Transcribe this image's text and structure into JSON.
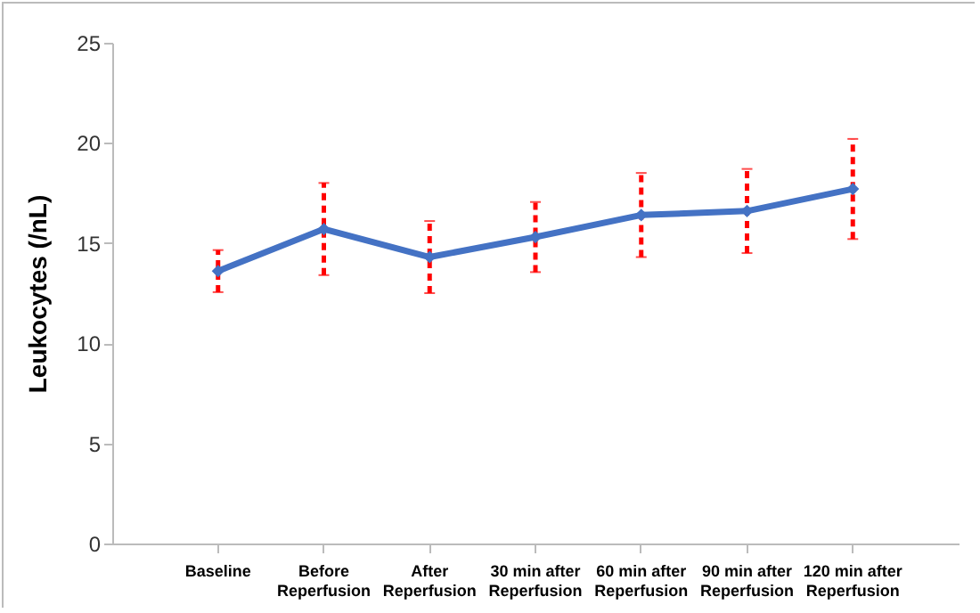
{
  "chart_data": {
    "type": "line",
    "ylabel": "Leukocytes (/nL)",
    "categories": [
      "Baseline",
      "Before Reperfusion",
      "After Reperfusion",
      "30 min after Reperfusion",
      "60 min after Reperfusion",
      "90 min after Reperfusion",
      "120 min after Reperfusion"
    ],
    "series": [
      {
        "color": "#4472c4",
        "values": [
          13.6,
          15.7,
          14.3,
          15.3,
          16.4,
          16.6,
          17.7
        ],
        "errors": [
          1.05,
          2.3,
          1.8,
          1.75,
          2.1,
          2.1,
          2.5
        ]
      }
    ],
    "ylim": [
      0,
      25
    ],
    "yticks": [
      0,
      5,
      10,
      15,
      20,
      25
    ],
    "grid": false,
    "marker": "diamond",
    "line_style": "solid"
  }
}
